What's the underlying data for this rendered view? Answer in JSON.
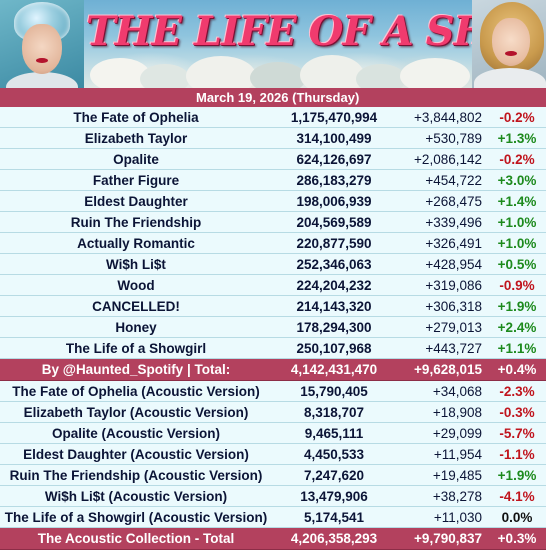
{
  "header": {
    "title": "THE LIFE OF A SHOWGIRL",
    "date": "March 19, 2026 (Thursday)"
  },
  "album_tracks": [
    {
      "name": "The Fate of Ophelia",
      "streams": "1,175,470,994",
      "daily": "+3,844,802",
      "change": "-0.2%",
      "trend": "neg"
    },
    {
      "name": "Elizabeth Taylor",
      "streams": "314,100,499",
      "daily": "+530,789",
      "change": "+1.3%",
      "trend": "pos"
    },
    {
      "name": "Opalite",
      "streams": "624,126,697",
      "daily": "+2,086,142",
      "change": "-0.2%",
      "trend": "neg"
    },
    {
      "name": "Father Figure",
      "streams": "286,183,279",
      "daily": "+454,722",
      "change": "+3.0%",
      "trend": "pos"
    },
    {
      "name": "Eldest Daughter",
      "streams": "198,006,939",
      "daily": "+268,475",
      "change": "+1.4%",
      "trend": "pos"
    },
    {
      "name": "Ruin The Friendship",
      "streams": "204,569,589",
      "daily": "+339,496",
      "change": "+1.0%",
      "trend": "pos"
    },
    {
      "name": "Actually Romantic",
      "streams": "220,877,590",
      "daily": "+326,491",
      "change": "+1.0%",
      "trend": "pos"
    },
    {
      "name": "Wi$h Li$t",
      "streams": "252,346,063",
      "daily": "+428,954",
      "change": "+0.5%",
      "trend": "pos"
    },
    {
      "name": "Wood",
      "streams": "224,204,232",
      "daily": "+319,086",
      "change": "-0.9%",
      "trend": "neg"
    },
    {
      "name": "CANCELLED!",
      "streams": "214,143,320",
      "daily": "+306,318",
      "change": "+1.9%",
      "trend": "pos"
    },
    {
      "name": "Honey",
      "streams": "178,294,300",
      "daily": "+279,013",
      "change": "+2.4%",
      "trend": "pos"
    },
    {
      "name": "The Life of a Showgirl",
      "streams": "250,107,968",
      "daily": "+443,727",
      "change": "+1.1%",
      "trend": "pos"
    }
  ],
  "album_total": {
    "name": "By @Haunted_Spotify | Total:",
    "streams": "4,142,431,470",
    "daily": "+9,628,015",
    "change": "+0.4%"
  },
  "acoustic_tracks": [
    {
      "name": "The Fate of Ophelia (Acoustic Version)",
      "streams": "15,790,405",
      "daily": "+34,068",
      "change": "-2.3%",
      "trend": "neg"
    },
    {
      "name": "Elizabeth Taylor (Acoustic Version)",
      "streams": "8,318,707",
      "daily": "+18,908",
      "change": "-0.3%",
      "trend": "neg"
    },
    {
      "name": "Opalite (Acoustic Version)",
      "streams": "9,465,111",
      "daily": "+29,099",
      "change": "-5.7%",
      "trend": "neg"
    },
    {
      "name": "Eldest Daughter (Acoustic Version)",
      "streams": "4,450,533",
      "daily": "+11,954",
      "change": "-1.1%",
      "trend": "neg"
    },
    {
      "name": "Ruin The Friendship (Acoustic Version)",
      "streams": "7,247,620",
      "daily": "+19,485",
      "change": "+1.9%",
      "trend": "pos"
    },
    {
      "name": "Wi$h Li$t (Acoustic Version)",
      "streams": "13,479,906",
      "daily": "+38,278",
      "change": "-4.1%",
      "trend": "neg"
    },
    {
      "name": "The Life of a Showgirl (Acoustic Version)",
      "streams": "5,174,541",
      "daily": "+11,030",
      "change": "0.0%",
      "trend": "zero"
    }
  ],
  "acoustic_total": {
    "name": "The Acoustic Collection - Total",
    "streams": "4,206,358,293",
    "daily": "+9,790,837",
    "change": "+0.3%"
  },
  "colors": {
    "accent": "#b3415e",
    "row_bg": "#ebfafd",
    "positive": "#1d8a1d",
    "negative": "#c0141d"
  }
}
